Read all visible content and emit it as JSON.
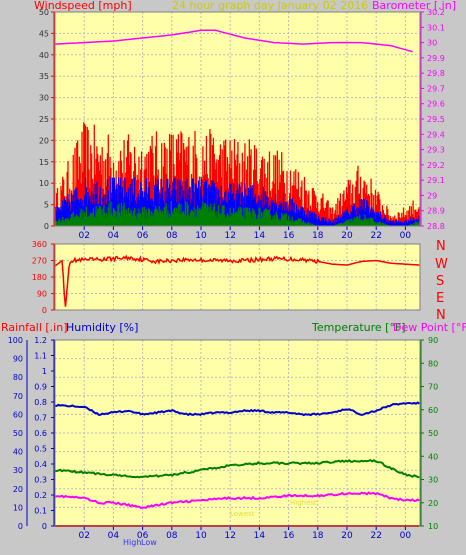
{
  "chart_data": [
    {
      "type": "line",
      "title": "24 hour graph day   January 02 2016",
      "ylabel_left": "Windspeed [mph]",
      "ylabel_right": "Barometer [.in]",
      "ylim": [
        0,
        50
      ],
      "y2lim": [
        28.8,
        30.2
      ],
      "xlim": [
        -1,
        24
      ],
      "x_ticks": [
        "02",
        "04",
        "06",
        "08",
        "10",
        "12",
        "14",
        "16",
        "18",
        "20",
        "22",
        "00"
      ],
      "y_ticks": [
        "0",
        "5",
        "10",
        "15",
        "20",
        "25",
        "30",
        "35",
        "40",
        "45",
        "50"
      ],
      "y2_ticks": [
        "28.8",
        "28.9",
        "29",
        "29.1",
        "29.2",
        "29.3",
        "29.4",
        "29.5",
        "29.6",
        "29.7",
        "29.8",
        "29.9",
        "30",
        "30.1",
        "30.2"
      ],
      "grid": true,
      "colors": {
        "gust": "#ff0000",
        "wind_average": "#0000ff",
        "wind_low": "#008000",
        "barometer": "#ff00ff"
      },
      "series": [
        {
          "role": "barometer",
          "color": "#ff00ff",
          "x": [
            -1,
            1,
            3,
            5,
            7,
            9,
            10,
            12,
            14,
            16,
            18,
            20,
            22,
            23.5
          ],
          "y": [
            29.99,
            30.0,
            30.01,
            30.03,
            30.05,
            30.08,
            30.08,
            30.03,
            30.0,
            29.99,
            30.0,
            30.0,
            29.98,
            29.94
          ]
        },
        {
          "role": "gust_upper",
          "color": "#ff0000",
          "x": [
            -1,
            1,
            3,
            5,
            7,
            9,
            11,
            13,
            15,
            17,
            18,
            19,
            20,
            21,
            22,
            23,
            24
          ],
          "y": [
            5,
            16,
            14,
            14,
            15,
            15,
            14,
            13,
            11,
            6,
            3,
            7,
            10,
            6,
            2,
            3,
            5
          ]
        },
        {
          "role": "average_upper",
          "color": "#0000ff",
          "x": [
            -1,
            1,
            3,
            5,
            7,
            9,
            11,
            13,
            15,
            17,
            18,
            19,
            20,
            21,
            22,
            23,
            24
          ],
          "y": [
            3,
            8,
            8,
            8,
            8,
            8,
            7,
            7,
            5,
            2,
            1,
            3,
            5,
            3,
            1,
            1,
            2
          ]
        },
        {
          "role": "low_upper",
          "color": "#008000",
          "x": [
            -1,
            1,
            3,
            5,
            7,
            9,
            11,
            13,
            15,
            17,
            18,
            19,
            20,
            21,
            22,
            23,
            24
          ],
          "y": [
            1,
            3,
            4,
            3,
            4,
            4,
            3,
            3,
            2,
            0,
            0,
            1,
            2,
            1,
            0,
            0,
            1
          ]
        }
      ]
    },
    {
      "type": "line",
      "right_labels": [
        "N",
        "W",
        "S",
        "E",
        "N"
      ],
      "ylim": [
        0,
        360
      ],
      "xlim": [
        -1,
        24
      ],
      "y_ticks": [
        "0",
        "90",
        "180",
        "270",
        "360"
      ],
      "series": [
        {
          "role": "wind_direction",
          "color": "#ff0000",
          "x": [
            -1,
            -0.5,
            -0.3,
            0,
            2,
            4,
            6,
            8,
            10,
            12,
            14,
            16,
            17,
            18,
            19,
            20,
            21,
            22,
            23,
            24
          ],
          "y": [
            240,
            270,
            0,
            270,
            275,
            285,
            265,
            275,
            270,
            270,
            280,
            275,
            265,
            250,
            245,
            265,
            270,
            255,
            250,
            245
          ]
        }
      ]
    },
    {
      "type": "line",
      "ylabel_left_1": "Rainfall [.in]",
      "ylabel_left_2": "Humidity [%]",
      "ylabel_right_1": "Temperature [°F]",
      "ylabel_right_2": "Dew Point [°F]",
      "xlim": [
        -1,
        24
      ],
      "humidity_lim": [
        0,
        100
      ],
      "rain_lim": [
        0,
        1.2
      ],
      "temp_lim": [
        10,
        90
      ],
      "humidity_ticks": [
        "0",
        "10",
        "20",
        "30",
        "40",
        "50",
        "60",
        "70",
        "80",
        "90",
        "100"
      ],
      "rain_ticks": [
        "0",
        "0.1",
        "0.2",
        "0.3",
        "0.4",
        "0.5",
        "0.6",
        "0.7",
        "0.8",
        "0.9",
        "1",
        "1.1",
        "1.2"
      ],
      "temp_ticks": [
        "10",
        "20",
        "30",
        "40",
        "50",
        "60",
        "70",
        "80",
        "90"
      ],
      "x_ticks": [
        "02",
        "04",
        "06",
        "08",
        "10",
        "12",
        "14",
        "16",
        "18",
        "20",
        "22",
        "00"
      ],
      "annotations": [
        "High",
        "Low",
        "Lowest",
        "Highest"
      ],
      "series": [
        {
          "name": "Humidity [%]",
          "color": "#0000cc",
          "x": [
            -1,
            1,
            2,
            3,
            4,
            5,
            6,
            7,
            8,
            9,
            10,
            11,
            12,
            13,
            14,
            15,
            16,
            17,
            18,
            19,
            20,
            21,
            22,
            23,
            24
          ],
          "y": [
            65,
            64,
            60,
            61,
            62,
            60,
            61,
            62,
            60,
            60,
            61,
            61,
            62,
            62,
            61,
            61,
            60,
            60,
            61,
            63,
            60,
            62,
            65,
            66,
            66
          ]
        },
        {
          "name": "Temperature [°F]",
          "color": "#008000",
          "x": [
            -1,
            1,
            3,
            5,
            7,
            9,
            11,
            13,
            15,
            17,
            19,
            21,
            22,
            23,
            24
          ],
          "y": [
            34,
            33,
            32,
            31,
            32,
            34,
            36,
            37,
            37,
            37,
            38,
            38,
            35,
            32,
            31
          ]
        },
        {
          "name": "Dew Point [°F]",
          "color": "#ff00ff",
          "x": [
            -1,
            1,
            2,
            3,
            4,
            5,
            7,
            9,
            11,
            13,
            15,
            17,
            19,
            21,
            22,
            23,
            24
          ],
          "y": [
            23,
            22,
            20,
            20,
            19,
            18,
            20,
            21,
            22,
            22,
            23,
            23,
            24,
            24,
            22,
            21,
            21
          ]
        },
        {
          "name": "Rainfall [.in]",
          "color": "#ff0000",
          "x": [
            -1,
            24
          ],
          "y": [
            0,
            0
          ]
        }
      ]
    }
  ]
}
